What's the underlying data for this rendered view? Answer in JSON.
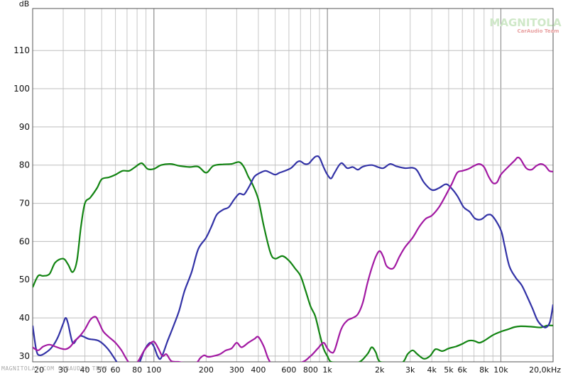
{
  "chart_data": {
    "type": "line",
    "ylabel": "dB",
    "xscale": "log",
    "xlim": [
      20,
      20000
    ],
    "ylim": [
      28.5,
      121
    ],
    "grid": true,
    "yticks": [
      {
        "value": 30,
        "label": "30"
      },
      {
        "value": 40,
        "label": "40"
      },
      {
        "value": 50,
        "label": "50"
      },
      {
        "value": 60,
        "label": "60"
      },
      {
        "value": 70,
        "label": "70"
      },
      {
        "value": 80,
        "label": "80"
      },
      {
        "value": 90,
        "label": "90"
      },
      {
        "value": 100,
        "label": "100"
      },
      {
        "value": 110,
        "label": "110"
      }
    ],
    "xticks": [
      {
        "value": 20,
        "label": "20"
      },
      {
        "value": 30,
        "label": "30"
      },
      {
        "value": 40,
        "label": "40"
      },
      {
        "value": 50,
        "label": "50"
      },
      {
        "value": 60,
        "label": "60"
      },
      {
        "value": 80,
        "label": "80"
      },
      {
        "value": 100,
        "label": "100"
      },
      {
        "value": 200,
        "label": "200"
      },
      {
        "value": 300,
        "label": "300"
      },
      {
        "value": 400,
        "label": "400"
      },
      {
        "value": 600,
        "label": "600"
      },
      {
        "value": 800,
        "label": "800"
      },
      {
        "value": 1000,
        "label": "1k"
      },
      {
        "value": 2000,
        "label": "2k"
      },
      {
        "value": 3000,
        "label": "3k"
      },
      {
        "value": 4000,
        "label": "4k"
      },
      {
        "value": 5000,
        "label": "5k"
      },
      {
        "value": 6000,
        "label": "6k"
      },
      {
        "value": 8000,
        "label": "8k"
      },
      {
        "value": 10000,
        "label": "10k"
      },
      {
        "value": 20000,
        "label": "20,0kHz"
      }
    ],
    "series": [
      {
        "color": "#128412",
        "points": [
          [
            20,
            48
          ],
          [
            21.5,
            51
          ],
          [
            23,
            51
          ],
          [
            25,
            51.5
          ],
          [
            27,
            54.5
          ],
          [
            30,
            55.5
          ],
          [
            32,
            54
          ],
          [
            34,
            52
          ],
          [
            36,
            55
          ],
          [
            38,
            64
          ],
          [
            40,
            70
          ],
          [
            43,
            71.5
          ],
          [
            47,
            74
          ],
          [
            50,
            76.3
          ],
          [
            55,
            76.8
          ],
          [
            60,
            77.5
          ],
          [
            66,
            78.5
          ],
          [
            72,
            78.5
          ],
          [
            78,
            79.5
          ],
          [
            85,
            80.5
          ],
          [
            92,
            79
          ],
          [
            100,
            79
          ],
          [
            110,
            80
          ],
          [
            125,
            80.3
          ],
          [
            140,
            79.8
          ],
          [
            160,
            79.5
          ],
          [
            180,
            79.6
          ],
          [
            200,
            78
          ],
          [
            220,
            79.8
          ],
          [
            250,
            80.2
          ],
          [
            280,
            80.3
          ],
          [
            310,
            80.8
          ],
          [
            330,
            79.5
          ],
          [
            350,
            77
          ],
          [
            370,
            75
          ],
          [
            400,
            71
          ],
          [
            430,
            64
          ],
          [
            470,
            57
          ],
          [
            500,
            55.5
          ],
          [
            550,
            56.2
          ],
          [
            600,
            55
          ],
          [
            650,
            53
          ],
          [
            700,
            51
          ],
          [
            750,
            47
          ],
          [
            800,
            43
          ],
          [
            850,
            40.5
          ],
          [
            900,
            36
          ],
          [
            950,
            32
          ],
          [
            1000,
            30
          ],
          [
            1050,
            28.5
          ],
          [
            1200,
            28.3
          ],
          [
            1500,
            28.3
          ],
          [
            1700,
            30.5
          ],
          [
            1800,
            32.3
          ],
          [
            1900,
            31
          ],
          [
            2000,
            28.6
          ],
          [
            2300,
            28.3
          ],
          [
            2700,
            28.3
          ],
          [
            2900,
            30.5
          ],
          [
            3100,
            31.5
          ],
          [
            3300,
            30.5
          ],
          [
            3600,
            29.3
          ],
          [
            3900,
            30
          ],
          [
            4200,
            31.8
          ],
          [
            4600,
            31.3
          ],
          [
            5000,
            32
          ],
          [
            5500,
            32.5
          ],
          [
            6000,
            33.2
          ],
          [
            6500,
            34
          ],
          [
            7000,
            34
          ],
          [
            7500,
            33.5
          ],
          [
            8000,
            34
          ],
          [
            9000,
            35.5
          ],
          [
            10000,
            36.4
          ],
          [
            11000,
            37
          ],
          [
            12000,
            37.6
          ],
          [
            13000,
            37.8
          ],
          [
            15000,
            37.7
          ],
          [
            17000,
            37.5
          ],
          [
            18500,
            38
          ],
          [
            20000,
            38
          ]
        ]
      },
      {
        "color": "#3232a6",
        "points": [
          [
            20,
            38
          ],
          [
            21,
            31.5
          ],
          [
            22,
            30.2
          ],
          [
            24,
            31
          ],
          [
            26,
            32.5
          ],
          [
            28,
            35
          ],
          [
            30,
            38.5
          ],
          [
            31,
            40
          ],
          [
            32,
            38.5
          ],
          [
            34,
            33.5
          ],
          [
            36,
            34.5
          ],
          [
            38,
            35.3
          ],
          [
            42,
            34.5
          ],
          [
            48,
            34
          ],
          [
            54,
            32
          ],
          [
            60,
            29
          ],
          [
            64,
            27
          ],
          [
            70,
            25
          ],
          [
            80,
            27
          ],
          [
            88,
            31.5
          ],
          [
            95,
            33.5
          ],
          [
            100,
            32.5
          ],
          [
            105,
            30
          ],
          [
            110,
            29.5
          ],
          [
            120,
            34
          ],
          [
            130,
            38
          ],
          [
            140,
            42
          ],
          [
            150,
            47
          ],
          [
            165,
            52
          ],
          [
            180,
            58
          ],
          [
            200,
            61
          ],
          [
            215,
            64
          ],
          [
            230,
            67
          ],
          [
            250,
            68.3
          ],
          [
            270,
            69
          ],
          [
            290,
            71
          ],
          [
            310,
            72.5
          ],
          [
            330,
            72.3
          ],
          [
            345,
            73.5
          ],
          [
            360,
            75
          ],
          [
            380,
            77
          ],
          [
            410,
            78
          ],
          [
            440,
            78.5
          ],
          [
            470,
            78
          ],
          [
            500,
            77.5
          ],
          [
            530,
            78
          ],
          [
            570,
            78.5
          ],
          [
            620,
            79.3
          ],
          [
            670,
            80.8
          ],
          [
            700,
            81
          ],
          [
            740,
            80.3
          ],
          [
            780,
            80.4
          ],
          [
            820,
            81.5
          ],
          [
            860,
            82.3
          ],
          [
            900,
            82
          ],
          [
            950,
            79.5
          ],
          [
            1000,
            77.5
          ],
          [
            1050,
            76.5
          ],
          [
            1100,
            78
          ],
          [
            1200,
            80.5
          ],
          [
            1300,
            79.2
          ],
          [
            1400,
            79.5
          ],
          [
            1500,
            78.8
          ],
          [
            1600,
            79.6
          ],
          [
            1800,
            80
          ],
          [
            1950,
            79.5
          ],
          [
            2100,
            79.2
          ],
          [
            2300,
            80.3
          ],
          [
            2500,
            79.7
          ],
          [
            2800,
            79.2
          ],
          [
            3100,
            79.3
          ],
          [
            3300,
            78.5
          ],
          [
            3600,
            75.5
          ],
          [
            4000,
            73.5
          ],
          [
            4400,
            74
          ],
          [
            4800,
            75
          ],
          [
            5100,
            74.3
          ],
          [
            5600,
            72
          ],
          [
            6100,
            69
          ],
          [
            6600,
            67.8
          ],
          [
            7100,
            66
          ],
          [
            7700,
            65.8
          ],
          [
            8400,
            67
          ],
          [
            9000,
            66.5
          ],
          [
            10000,
            63
          ],
          [
            10500,
            59
          ],
          [
            11200,
            53.5
          ],
          [
            12200,
            50.5
          ],
          [
            13200,
            48.5
          ],
          [
            14200,
            45.5
          ],
          [
            15200,
            42.5
          ],
          [
            16200,
            39.5
          ],
          [
            17200,
            38
          ],
          [
            18200,
            37.5
          ],
          [
            19200,
            39
          ],
          [
            20000,
            43.5
          ]
        ]
      },
      {
        "color": "#a219a2",
        "points": [
          [
            20,
            32.3
          ],
          [
            21.5,
            31.5
          ],
          [
            23,
            32.5
          ],
          [
            25,
            33
          ],
          [
            27,
            32.5
          ],
          [
            29,
            32
          ],
          [
            31,
            31.8
          ],
          [
            33,
            32.5
          ],
          [
            35,
            34
          ],
          [
            37,
            35
          ],
          [
            40,
            37
          ],
          [
            43,
            39.5
          ],
          [
            46,
            40.3
          ],
          [
            48,
            39
          ],
          [
            51,
            36.5
          ],
          [
            55,
            35
          ],
          [
            60,
            33.5
          ],
          [
            65,
            31.5
          ],
          [
            70,
            29
          ],
          [
            76,
            27
          ],
          [
            82,
            29
          ],
          [
            88,
            31.5
          ],
          [
            94,
            33
          ],
          [
            100,
            33.8
          ],
          [
            106,
            32
          ],
          [
            112,
            30
          ],
          [
            118,
            30.5
          ],
          [
            126,
            28.7
          ],
          [
            138,
            28.5
          ],
          [
            150,
            28.3
          ],
          [
            175,
            28.3
          ],
          [
            185,
            29.5
          ],
          [
            195,
            30.2
          ],
          [
            205,
            29.8
          ],
          [
            220,
            30
          ],
          [
            240,
            30.5
          ],
          [
            260,
            31.5
          ],
          [
            280,
            32
          ],
          [
            300,
            33.5
          ],
          [
            320,
            32.3
          ],
          [
            350,
            33.5
          ],
          [
            380,
            34.5
          ],
          [
            400,
            35
          ],
          [
            430,
            32.5
          ],
          [
            460,
            29
          ],
          [
            500,
            27.5
          ],
          [
            700,
            28.3
          ],
          [
            800,
            30
          ],
          [
            880,
            32
          ],
          [
            950,
            33.5
          ],
          [
            1000,
            32
          ],
          [
            1050,
            31
          ],
          [
            1100,
            31.5
          ],
          [
            1200,
            37
          ],
          [
            1300,
            39.3
          ],
          [
            1400,
            40
          ],
          [
            1500,
            41
          ],
          [
            1600,
            44
          ],
          [
            1700,
            49
          ],
          [
            1800,
            53
          ],
          [
            1900,
            56
          ],
          [
            2000,
            57.5
          ],
          [
            2100,
            56
          ],
          [
            2200,
            53.5
          ],
          [
            2400,
            53
          ],
          [
            2600,
            56
          ],
          [
            2800,
            58.5
          ],
          [
            3100,
            61
          ],
          [
            3400,
            64
          ],
          [
            3700,
            66
          ],
          [
            4000,
            66.8
          ],
          [
            4400,
            69
          ],
          [
            4800,
            72
          ],
          [
            5200,
            75
          ],
          [
            5600,
            78
          ],
          [
            6000,
            78.5
          ],
          [
            6500,
            79
          ],
          [
            7000,
            79.8
          ],
          [
            7500,
            80.3
          ],
          [
            8000,
            79.5
          ],
          [
            8500,
            77
          ],
          [
            9000,
            75.3
          ],
          [
            9500,
            75.5
          ],
          [
            10000,
            77.5
          ],
          [
            11000,
            79.5
          ],
          [
            12000,
            81.2
          ],
          [
            12500,
            82
          ],
          [
            13000,
            81.5
          ],
          [
            14000,
            79.2
          ],
          [
            15000,
            78.8
          ],
          [
            16000,
            79.8
          ],
          [
            17000,
            80.3
          ],
          [
            18000,
            79.8
          ],
          [
            19000,
            78.5
          ],
          [
            20000,
            78.3
          ]
        ]
      }
    ]
  },
  "watermark": {
    "brand": "MAGNITOLA",
    "subtitle": "CarAudio Team"
  },
  "footer": {
    "text": "MAGNITOLAT.COM CARAUDIO TEAM"
  }
}
